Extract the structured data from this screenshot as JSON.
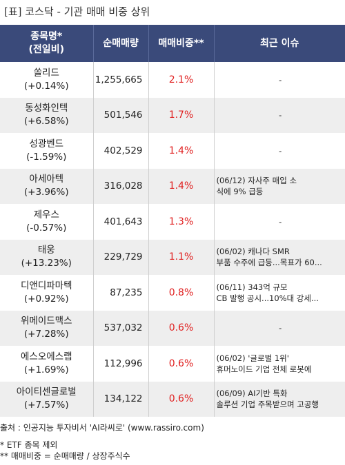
{
  "title": "[표] 코스닥 - 기관 매매 비중 상위",
  "headers": {
    "name_line1": "종목명*",
    "name_line2": "(전일비)",
    "volume": "순매매량",
    "ratio": "매매비중**",
    "issue": "최근 이슈"
  },
  "rows": [
    {
      "name": "쏠리드",
      "change": "(+0.14%)",
      "volume": "1,255,665",
      "ratio": "2.1%",
      "issue1": "-",
      "issue2": ""
    },
    {
      "name": "동성화인텍",
      "change": "(+6.58%)",
      "volume": "501,546",
      "ratio": "1.7%",
      "issue1": "-",
      "issue2": ""
    },
    {
      "name": "성광벤드",
      "change": "(-1.59%)",
      "volume": "402,529",
      "ratio": "1.4%",
      "issue1": "-",
      "issue2": ""
    },
    {
      "name": "아세아텍",
      "change": "(+3.96%)",
      "volume": "316,028",
      "ratio": "1.4%",
      "issue1": "(06/12) 자사주 매입 소",
      "issue2": "식에 9% 급등"
    },
    {
      "name": "제우스",
      "change": "(-0.57%)",
      "volume": "401,643",
      "ratio": "1.3%",
      "issue1": "-",
      "issue2": ""
    },
    {
      "name": "태웅",
      "change": "(+13.23%)",
      "volume": "229,729",
      "ratio": "1.1%",
      "issue1": "(06/02) 캐나다 SMR",
      "issue2": "부품 수주에 급등...목표가 60..."
    },
    {
      "name": "디앤디파마텍",
      "change": "(+0.92%)",
      "volume": "87,235",
      "ratio": "0.8%",
      "issue1": "(06/11) 343억 규모",
      "issue2": "CB 발행 공시...10%대 강세..."
    },
    {
      "name": "위메이드맥스",
      "change": "(+7.28%)",
      "volume": "537,032",
      "ratio": "0.6%",
      "issue1": "-",
      "issue2": ""
    },
    {
      "name": "에스오에스랩",
      "change": "(+1.69%)",
      "volume": "112,996",
      "ratio": "0.6%",
      "issue1": "(06/02) '글로벌 1위'",
      "issue2": " 휴머노이드 기업 전체 로봇에"
    },
    {
      "name": "아이티센글로벌",
      "change": "(+7.57%)",
      "volume": "134,122",
      "ratio": "0.6%",
      "issue1": "(06/09) AI기반 특화",
      "issue2": "솔루션 기업 주목받으며 고공행"
    }
  ],
  "footer": {
    "source": "출처 : 인공지능 투자비서 'AI라씨로' (www.rassiro.com)",
    "note1": "* ETF 종목 제외",
    "note2": "** 매매비중 = 순매매량 / 상장주식수"
  }
}
